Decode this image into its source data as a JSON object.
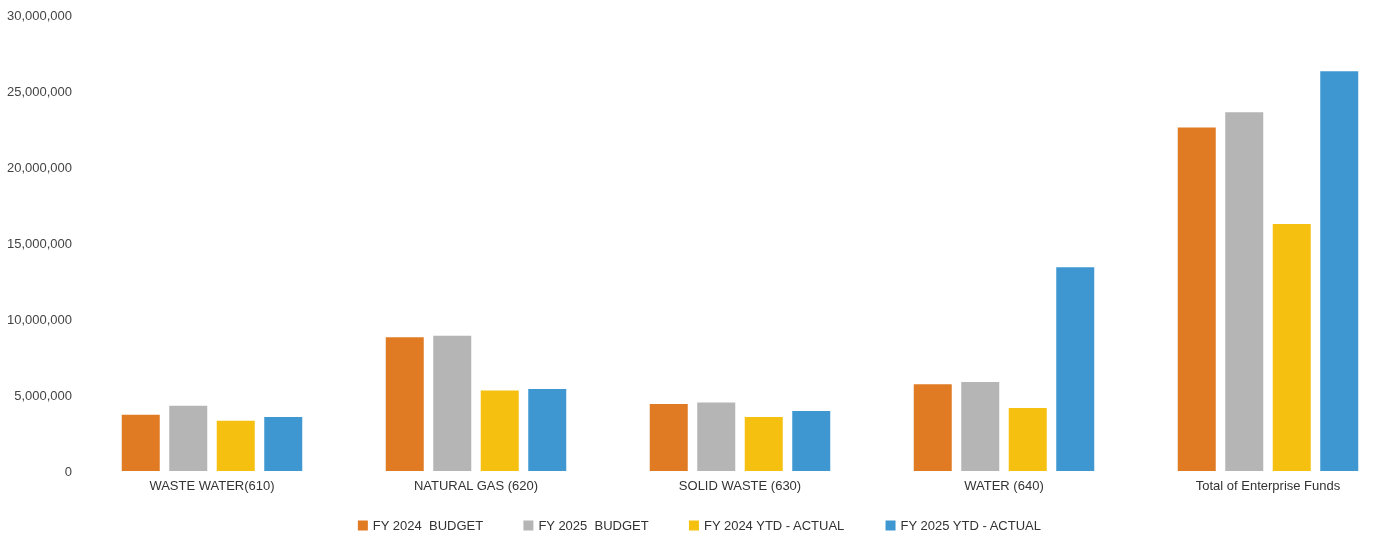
{
  "chart_data": {
    "type": "bar",
    "categories": [
      "WASTE WATER(610)",
      "NATURAL GAS (620)",
      "SOLID WASTE (630)",
      "WATER (640)",
      "Total of Enterprise Funds"
    ],
    "series": [
      {
        "name": "FY 2024  BUDGET",
        "color": "#e07b24",
        "values": [
          3700000,
          8800000,
          4400000,
          5700000,
          22600000
        ]
      },
      {
        "name": "FY 2025  BUDGET",
        "color": "#b5b5b5",
        "values": [
          4300000,
          8900000,
          4500000,
          5850000,
          23600000
        ]
      },
      {
        "name": "FY 2024 YTD - ACTUAL",
        "color": "#f5c00f",
        "values": [
          3300000,
          5300000,
          3550000,
          4150000,
          16250000
        ]
      },
      {
        "name": "FY 2025 YTD - ACTUAL",
        "color": "#3e97d1",
        "values": [
          3550000,
          5400000,
          3950000,
          13400000,
          26300000
        ]
      }
    ],
    "ylim": [
      0,
      30000000
    ],
    "yticks": [
      0,
      {
        "value": 5000000,
        "label": "5,000,000"
      },
      {
        "value": 10000000,
        "label": "10,000,000"
      },
      {
        "value": 15000000,
        "label": "15,000,000"
      },
      {
        "value": 20000000,
        "label": "20,000,000"
      },
      {
        "value": 25000000,
        "label": "25,000,000"
      },
      {
        "value": 30000000,
        "label": "30,000,000"
      }
    ],
    "grid": false,
    "legend": "bottom"
  }
}
